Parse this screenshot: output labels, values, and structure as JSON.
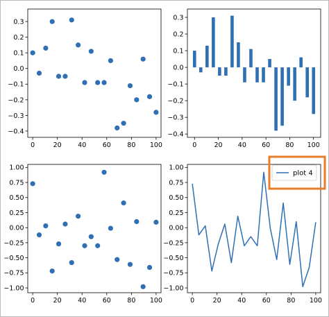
{
  "chart_data": [
    {
      "type": "scatter",
      "color": "#2f6fb4",
      "x": [
        0,
        5.26,
        10.53,
        15.79,
        21.05,
        26.32,
        31.58,
        36.84,
        42.11,
        47.37,
        52.63,
        57.89,
        63.16,
        68.42,
        73.68,
        78.95,
        84.21,
        89.47,
        94.74,
        100
      ],
      "y": [
        0.1,
        -0.03,
        0.13,
        0.3,
        -0.05,
        -0.05,
        0.31,
        0.15,
        -0.09,
        0.11,
        -0.09,
        -0.09,
        0.05,
        -0.38,
        -0.35,
        -0.11,
        -0.2,
        0.06,
        -0.18,
        -0.28
      ],
      "xlim": [
        -4,
        104
      ],
      "ylim": [
        -0.44,
        0.38
      ],
      "xticks": [
        "0",
        "20",
        "40",
        "60",
        "80",
        "100"
      ],
      "xtick_values": [
        0,
        20,
        40,
        60,
        80,
        100
      ],
      "yticks": [
        "−0.4",
        "−0.3",
        "−0.2",
        "−0.1",
        "0.0",
        "0.1",
        "0.2",
        "0.3"
      ],
      "ytick_values": [
        -0.4,
        -0.3,
        -0.2,
        -0.1,
        0.0,
        0.1,
        0.2,
        0.3
      ]
    },
    {
      "type": "bar",
      "color": "#2f6fb4",
      "x": [
        0,
        5.26,
        10.53,
        15.79,
        21.05,
        26.32,
        31.58,
        36.84,
        42.11,
        47.37,
        52.63,
        57.89,
        63.16,
        68.42,
        73.68,
        78.95,
        84.21,
        89.47,
        94.74,
        100
      ],
      "y": [
        0.1,
        -0.03,
        0.13,
        0.3,
        -0.05,
        -0.05,
        0.31,
        0.15,
        -0.09,
        0.11,
        -0.09,
        -0.09,
        0.05,
        -0.38,
        -0.35,
        -0.11,
        -0.2,
        0.06,
        -0.18,
        -0.28
      ],
      "xlim": [
        -6,
        106
      ],
      "ylim": [
        -0.42,
        0.35
      ],
      "xticks": [
        "0",
        "20",
        "40",
        "60",
        "80",
        "100"
      ],
      "xtick_values": [
        0,
        20,
        40,
        60,
        80,
        100
      ],
      "yticks": [
        "−0.4",
        "−0.3",
        "−0.2",
        "−0.1",
        "0.0",
        "0.1",
        "0.2",
        "0.3"
      ],
      "ytick_values": [
        -0.4,
        -0.3,
        -0.2,
        -0.1,
        0.0,
        0.1,
        0.2,
        0.3
      ]
    },
    {
      "type": "scatter",
      "color": "#2f6fb4",
      "x": [
        0,
        5.26,
        10.53,
        15.79,
        21.05,
        26.32,
        31.58,
        36.84,
        42.11,
        47.37,
        52.63,
        57.89,
        63.16,
        68.42,
        73.68,
        78.95,
        84.21,
        89.47,
        94.74,
        100
      ],
      "y": [
        0.73,
        -0.12,
        0.03,
        -0.72,
        -0.27,
        0.06,
        -0.58,
        0.19,
        -0.3,
        -0.15,
        -0.3,
        0.92,
        -0.01,
        -0.53,
        0.41,
        -0.61,
        0.1,
        -0.98,
        -0.66,
        0.09
      ],
      "xlim": [
        -4,
        104
      ],
      "ylim": [
        -1.08,
        1.05
      ],
      "xticks": [
        "0",
        "20",
        "40",
        "60",
        "80",
        "100"
      ],
      "xtick_values": [
        0,
        20,
        40,
        60,
        80,
        100
      ],
      "yticks": [
        "−1.00",
        "−0.75",
        "−0.50",
        "−0.25",
        "0.00",
        "0.25",
        "0.50",
        "0.75",
        "1.00"
      ],
      "ytick_values": [
        -1.0,
        -0.75,
        -0.5,
        -0.25,
        0.0,
        0.25,
        0.5,
        0.75,
        1.0
      ]
    },
    {
      "type": "line",
      "color": "#2f6fb4",
      "legend": [
        "plot 4"
      ],
      "legend_position": "top-right",
      "legend_highlight_color": "#e87d2b",
      "x": [
        0,
        5.26,
        10.53,
        15.79,
        21.05,
        26.32,
        31.58,
        36.84,
        42.11,
        47.37,
        52.63,
        57.89,
        63.16,
        68.42,
        73.68,
        78.95,
        84.21,
        89.47,
        94.74,
        100
      ],
      "y": [
        0.73,
        -0.12,
        0.03,
        -0.72,
        -0.27,
        0.06,
        -0.58,
        0.19,
        -0.3,
        -0.15,
        -0.3,
        0.92,
        -0.01,
        -0.53,
        0.41,
        -0.61,
        0.1,
        -0.98,
        -0.66,
        0.09
      ],
      "xlim": [
        -4,
        104
      ],
      "ylim": [
        -1.08,
        1.05
      ],
      "xticks": [
        "0",
        "20",
        "40",
        "60",
        "80",
        "100"
      ],
      "xtick_values": [
        0,
        20,
        40,
        60,
        80,
        100
      ],
      "yticks": [
        "−1.00",
        "−0.75",
        "−0.50",
        "−0.25",
        "0.00",
        "0.25",
        "0.50",
        "0.75",
        "1.00"
      ],
      "ytick_values": [
        -1.0,
        -0.75,
        -0.5,
        -0.25,
        0.0,
        0.25,
        0.5,
        0.75,
        1.0
      ]
    }
  ]
}
